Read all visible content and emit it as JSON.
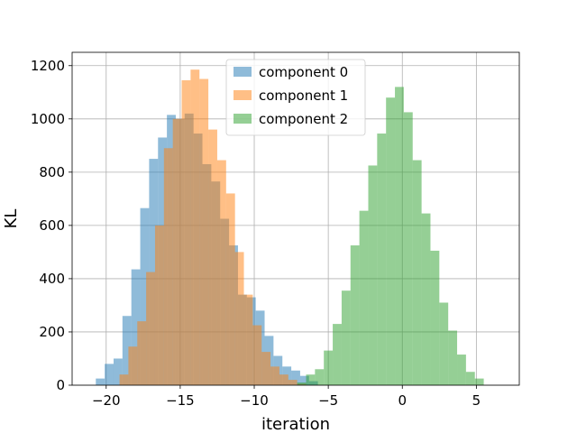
{
  "chart_data": {
    "type": "histogram",
    "title": "",
    "xlabel": "iteration",
    "ylabel": "KL",
    "xlim": [
      -22.3,
      7.9
    ],
    "ylim": [
      0,
      1250
    ],
    "xticks": [
      -20,
      -15,
      -10,
      -5,
      0,
      5
    ],
    "yticks": [
      0,
      200,
      400,
      600,
      800,
      1000,
      1200
    ],
    "grid": true,
    "legend_position": "upper-center",
    "series": [
      {
        "name": "component 0",
        "color": "#1f77b4",
        "opacity": 0.5,
        "bins": [
          {
            "x0": -20.7,
            "x1": -20.1,
            "count": 25
          },
          {
            "x0": -20.1,
            "x1": -19.5,
            "count": 80
          },
          {
            "x0": -19.5,
            "x1": -18.9,
            "count": 100
          },
          {
            "x0": -18.9,
            "x1": -18.3,
            "count": 260
          },
          {
            "x0": -18.3,
            "x1": -17.7,
            "count": 435
          },
          {
            "x0": -17.7,
            "x1": -17.1,
            "count": 665
          },
          {
            "x0": -17.1,
            "x1": -16.5,
            "count": 850
          },
          {
            "x0": -16.5,
            "x1": -15.9,
            "count": 930
          },
          {
            "x0": -15.9,
            "x1": -15.3,
            "count": 1015
          },
          {
            "x0": -15.3,
            "x1": -14.7,
            "count": 1000
          },
          {
            "x0": -14.7,
            "x1": -14.1,
            "count": 1020
          },
          {
            "x0": -14.1,
            "x1": -13.5,
            "count": 945
          },
          {
            "x0": -13.5,
            "x1": -12.9,
            "count": 830
          },
          {
            "x0": -12.9,
            "x1": -12.3,
            "count": 765
          },
          {
            "x0": -12.3,
            "x1": -11.7,
            "count": 625
          },
          {
            "x0": -11.7,
            "x1": -11.1,
            "count": 525
          },
          {
            "x0": -11.1,
            "x1": -10.5,
            "count": 340
          },
          {
            "x0": -10.5,
            "x1": -9.9,
            "count": 330
          },
          {
            "x0": -9.9,
            "x1": -9.3,
            "count": 280
          },
          {
            "x0": -9.3,
            "x1": -8.7,
            "count": 185
          },
          {
            "x0": -8.7,
            "x1": -8.1,
            "count": 110
          },
          {
            "x0": -8.1,
            "x1": -7.5,
            "count": 70
          },
          {
            "x0": -7.5,
            "x1": -6.9,
            "count": 55
          },
          {
            "x0": -6.9,
            "x1": -6.3,
            "count": 35
          },
          {
            "x0": -6.3,
            "x1": -5.7,
            "count": 15
          }
        ]
      },
      {
        "name": "component 1",
        "color": "#ff7f0e",
        "opacity": 0.5,
        "bins": [
          {
            "x0": -19.1,
            "x1": -18.5,
            "count": 40
          },
          {
            "x0": -18.5,
            "x1": -17.9,
            "count": 145
          },
          {
            "x0": -17.9,
            "x1": -17.3,
            "count": 240
          },
          {
            "x0": -17.3,
            "x1": -16.7,
            "count": 425
          },
          {
            "x0": -16.7,
            "x1": -16.1,
            "count": 600
          },
          {
            "x0": -16.1,
            "x1": -15.5,
            "count": 890
          },
          {
            "x0": -15.5,
            "x1": -14.9,
            "count": 1000
          },
          {
            "x0": -14.9,
            "x1": -14.3,
            "count": 1145
          },
          {
            "x0": -14.3,
            "x1": -13.7,
            "count": 1185
          },
          {
            "x0": -13.7,
            "x1": -13.1,
            "count": 1150
          },
          {
            "x0": -13.1,
            "x1": -12.5,
            "count": 960
          },
          {
            "x0": -12.5,
            "x1": -11.9,
            "count": 845
          },
          {
            "x0": -11.9,
            "x1": -11.3,
            "count": 720
          },
          {
            "x0": -11.3,
            "x1": -10.7,
            "count": 500
          },
          {
            "x0": -10.7,
            "x1": -10.1,
            "count": 340
          },
          {
            "x0": -10.1,
            "x1": -9.5,
            "count": 225
          },
          {
            "x0": -9.5,
            "x1": -8.9,
            "count": 125
          },
          {
            "x0": -8.9,
            "x1": -8.3,
            "count": 70
          },
          {
            "x0": -8.3,
            "x1": -7.7,
            "count": 40
          },
          {
            "x0": -7.7,
            "x1": -7.1,
            "count": 20
          },
          {
            "x0": -7.1,
            "x1": -6.5,
            "count": 5
          }
        ]
      },
      {
        "name": "component 2",
        "color": "#2ca02c",
        "opacity": 0.5,
        "bins": [
          {
            "x0": -7.1,
            "x1": -6.5,
            "count": 10
          },
          {
            "x0": -6.5,
            "x1": -5.9,
            "count": 40
          },
          {
            "x0": -5.9,
            "x1": -5.3,
            "count": 60
          },
          {
            "x0": -5.3,
            "x1": -4.7,
            "count": 130
          },
          {
            "x0": -4.7,
            "x1": -4.1,
            "count": 230
          },
          {
            "x0": -4.1,
            "x1": -3.5,
            "count": 355
          },
          {
            "x0": -3.5,
            "x1": -2.9,
            "count": 525
          },
          {
            "x0": -2.9,
            "x1": -2.3,
            "count": 655
          },
          {
            "x0": -2.3,
            "x1": -1.7,
            "count": 825
          },
          {
            "x0": -1.7,
            "x1": -1.1,
            "count": 945
          },
          {
            "x0": -1.1,
            "x1": -0.5,
            "count": 1080
          },
          {
            "x0": -0.5,
            "x1": 0.1,
            "count": 1120
          },
          {
            "x0": 0.1,
            "x1": 0.7,
            "count": 1025
          },
          {
            "x0": 0.7,
            "x1": 1.3,
            "count": 845
          },
          {
            "x0": 1.3,
            "x1": 1.9,
            "count": 645
          },
          {
            "x0": 1.9,
            "x1": 2.5,
            "count": 505
          },
          {
            "x0": 2.5,
            "x1": 3.1,
            "count": 310
          },
          {
            "x0": 3.1,
            "x1": 3.7,
            "count": 205
          },
          {
            "x0": 3.7,
            "x1": 4.3,
            "count": 115
          },
          {
            "x0": 4.3,
            "x1": 4.9,
            "count": 50
          },
          {
            "x0": 4.9,
            "x1": 5.5,
            "count": 25
          }
        ]
      }
    ]
  }
}
